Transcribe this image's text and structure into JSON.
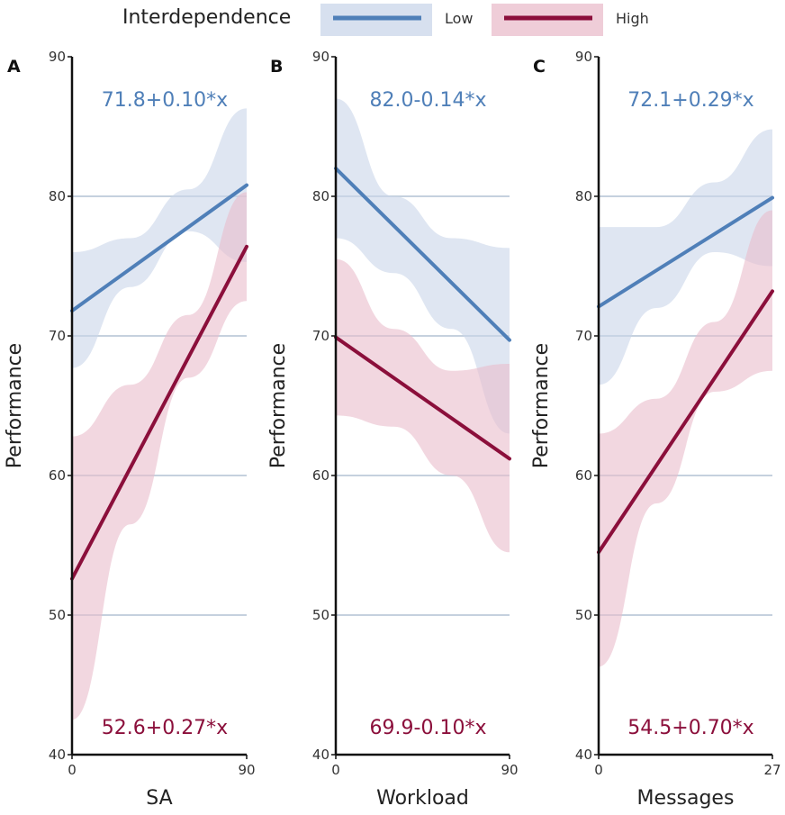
{
  "legend": {
    "title": "Interdependence",
    "items": [
      {
        "label": "Low",
        "color": "#4f7fb8"
      },
      {
        "label": "High",
        "color": "#8b0f3b"
      }
    ]
  },
  "colors": {
    "low": "#4f7fb8",
    "high": "#8b0f3b",
    "low_band": "#c9d6ea",
    "high_band": "#e9bccb",
    "grid": "#c5d1de",
    "axis": "#111111"
  },
  "chart_data": [
    {
      "type": "line",
      "panel": "A",
      "xlabel": "SA",
      "ylabel": "Performance",
      "xlim": [
        0,
        90
      ],
      "ylim": [
        40,
        90
      ],
      "xticks": [
        0,
        90
      ],
      "yticks": [
        40,
        50,
        60,
        70,
        80,
        90
      ],
      "grid": true,
      "series": [
        {
          "name": "Low",
          "x": [
            0,
            90
          ],
          "values": [
            71.8,
            80.8
          ],
          "ci_x": [
            0,
            30,
            60,
            90
          ],
          "ci_lower": [
            67.7,
            73.5,
            77.5,
            75.3
          ],
          "ci_upper": [
            76.0,
            77.0,
            80.5,
            86.3
          ]
        },
        {
          "name": "High",
          "x": [
            0,
            90
          ],
          "values": [
            52.6,
            76.4
          ],
          "ci_x": [
            0,
            30,
            60,
            90
          ],
          "ci_lower": [
            42.5,
            56.5,
            67.0,
            72.5
          ],
          "ci_upper": [
            62.8,
            66.5,
            71.5,
            80.3
          ]
        }
      ],
      "annotations": [
        {
          "text": "71.8+0.10*x",
          "series": "Low",
          "position": "top"
        },
        {
          "text": "52.6+0.27*x",
          "series": "High",
          "position": "bottom"
        }
      ]
    },
    {
      "type": "line",
      "panel": "B",
      "xlabel": "Workload",
      "ylabel": "Performance",
      "xlim": [
        0,
        90
      ],
      "ylim": [
        40,
        90
      ],
      "xticks": [
        0,
        90
      ],
      "yticks": [
        40,
        50,
        60,
        70,
        80,
        90
      ],
      "grid": true,
      "series": [
        {
          "name": "Low",
          "x": [
            0,
            90
          ],
          "values": [
            82.0,
            69.7
          ],
          "ci_x": [
            0,
            30,
            60,
            90
          ],
          "ci_lower": [
            77.0,
            74.5,
            70.5,
            63.0
          ],
          "ci_upper": [
            87.0,
            80.0,
            77.0,
            76.3
          ]
        },
        {
          "name": "High",
          "x": [
            0,
            90
          ],
          "values": [
            69.9,
            61.2
          ],
          "ci_x": [
            0,
            30,
            60,
            90
          ],
          "ci_lower": [
            64.3,
            63.5,
            60.0,
            54.5
          ],
          "ci_upper": [
            75.5,
            70.5,
            67.5,
            68.0
          ]
        }
      ],
      "annotations": [
        {
          "text": "82.0-0.14*x",
          "series": "Low",
          "position": "top"
        },
        {
          "text": "69.9-0.10*x",
          "series": "High",
          "position": "bottom"
        }
      ]
    },
    {
      "type": "line",
      "panel": "C",
      "xlabel": "Messages",
      "ylabel": "Performance",
      "xlim": [
        0,
        27
      ],
      "ylim": [
        40,
        90
      ],
      "xticks": [
        0,
        27
      ],
      "yticks": [
        40,
        50,
        60,
        70,
        80,
        90
      ],
      "grid": true,
      "series": [
        {
          "name": "Low",
          "x": [
            0,
            27
          ],
          "values": [
            72.1,
            79.9
          ],
          "ci_x": [
            0,
            9,
            18,
            27
          ],
          "ci_lower": [
            66.5,
            72.0,
            76.0,
            75.0
          ],
          "ci_upper": [
            77.8,
            77.8,
            81.0,
            84.8
          ]
        },
        {
          "name": "High",
          "x": [
            0,
            27
          ],
          "values": [
            54.5,
            73.2
          ],
          "ci_x": [
            0,
            9,
            18,
            27
          ],
          "ci_lower": [
            46.3,
            58.0,
            66.0,
            67.5
          ],
          "ci_upper": [
            63.0,
            65.5,
            71.0,
            79.0
          ]
        }
      ],
      "annotations": [
        {
          "text": "72.1+0.29*x",
          "series": "Low",
          "position": "top"
        },
        {
          "text": "54.5+0.70*x",
          "series": "High",
          "position": "bottom"
        }
      ]
    }
  ]
}
